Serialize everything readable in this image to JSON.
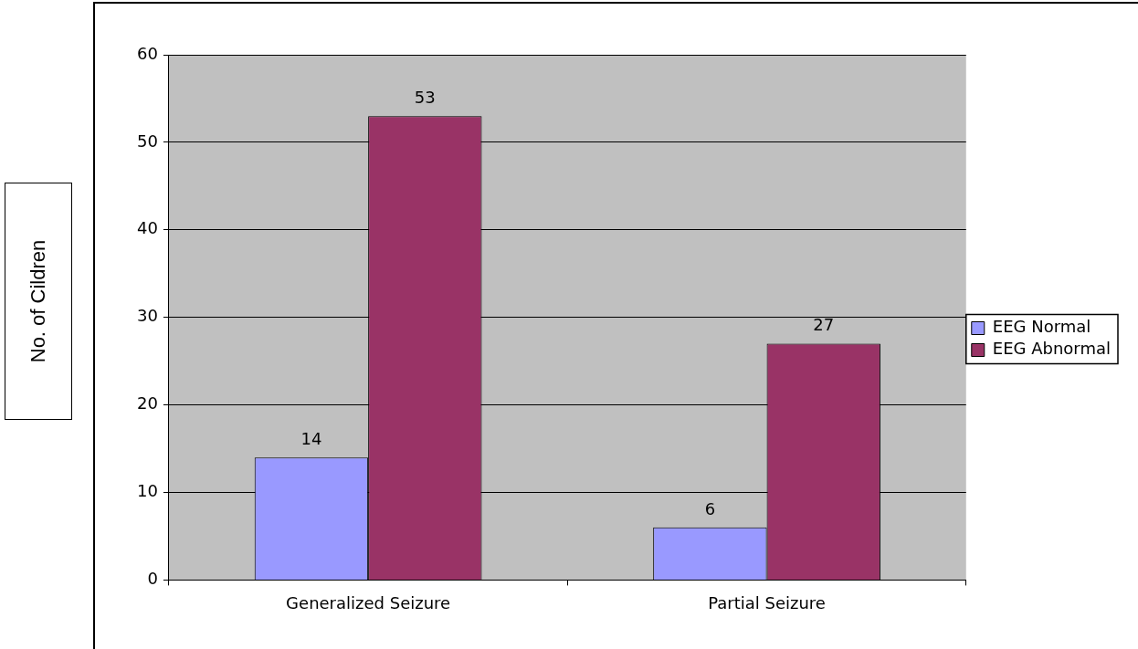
{
  "chart_data": {
    "type": "bar",
    "ylabel": "No. of Cildren",
    "categories": [
      "Generalized Seizure",
      "Partial Seizure"
    ],
    "series": [
      {
        "name": "EEG Normal",
        "color": "#9999ff",
        "values": [
          14,
          6
        ]
      },
      {
        "name": "EEG Abnormal",
        "color": "#993366",
        "values": [
          53,
          27
        ]
      }
    ],
    "ylim": [
      0,
      60
    ],
    "yticks": [
      0,
      10,
      20,
      30,
      40,
      50,
      60
    ],
    "grid": "y",
    "legend": "right",
    "data_labels": true
  }
}
